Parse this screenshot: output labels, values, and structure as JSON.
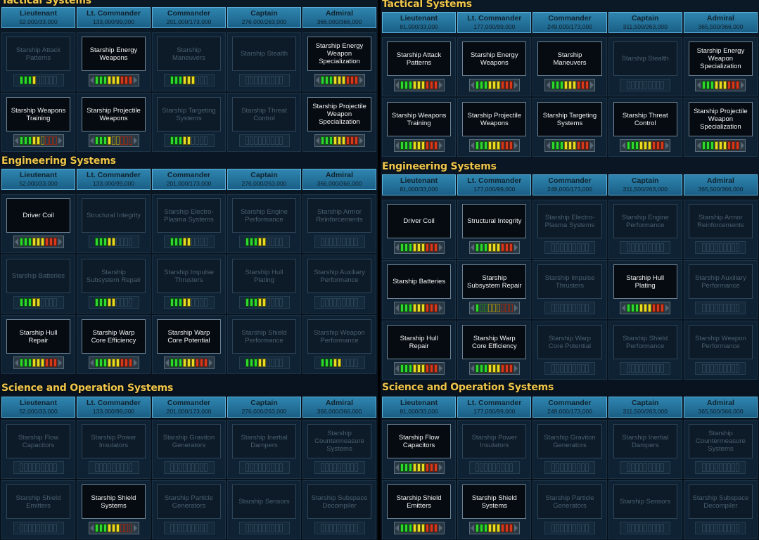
{
  "panels": [
    {
      "sections": [
        {
          "title": "Tactical Systems",
          "ranks": [
            {
              "name": "Lieutenant",
              "xp": "52,000/33,000"
            },
            {
              "name": "Lt. Commander",
              "xp": "133,000/99,000"
            },
            {
              "name": "Commander",
              "xp": "201,000/173,000"
            },
            {
              "name": "Captain",
              "xp": "276,000/263,000"
            },
            {
              "name": "Admiral",
              "xp": "366,000/366,000"
            }
          ],
          "rows": [
            [
              {
                "name": "Starship Attack Patterns",
                "active": false,
                "level": 4
              },
              {
                "name": "Starship Energy Weapons",
                "active": true,
                "level": 9
              },
              {
                "name": "Starship Maneuvers",
                "active": false,
                "level": 6
              },
              {
                "name": "Starship Stealth",
                "active": false,
                "level": 0
              },
              {
                "name": "Starship Energy Weapon Specialization",
                "active": true,
                "level": 9
              }
            ],
            [
              {
                "name": "Starship Weapons Training",
                "active": true,
                "level": 5
              },
              {
                "name": "Starship Projectile Weapons",
                "active": true,
                "level": 4
              },
              {
                "name": "Starship Targeting Systems",
                "active": false,
                "level": 5
              },
              {
                "name": "Starship Threat Control",
                "active": false,
                "level": 0
              },
              {
                "name": "Starship Projectile Weapon Specialization",
                "active": true,
                "level": 9
              }
            ]
          ]
        },
        {
          "title": "Engineering Systems",
          "ranks": [
            {
              "name": "Lieutenant",
              "xp": "52,000/33,000"
            },
            {
              "name": "Lt. Commander",
              "xp": "133,000/99,000"
            },
            {
              "name": "Commander",
              "xp": "201,000/173,000"
            },
            {
              "name": "Captain",
              "xp": "276,000/263,000"
            },
            {
              "name": "Admiral",
              "xp": "366,000/366,000"
            }
          ],
          "rows": [
            [
              {
                "name": "Driver Coil",
                "active": true,
                "level": 9
              },
              {
                "name": "Structural Integrity",
                "active": false,
                "level": 5
              },
              {
                "name": "Starship Electro-Plasma Systems",
                "active": false,
                "level": 5
              },
              {
                "name": "Starship Engine Performance",
                "active": false,
                "level": 5
              },
              {
                "name": "Starship Armor Reinforcements",
                "active": false,
                "level": 0
              }
            ],
            [
              {
                "name": "Starship Batteries",
                "active": false,
                "level": 5
              },
              {
                "name": "Starship Subsystem Repair",
                "active": false,
                "level": 5
              },
              {
                "name": "Starship Impulse Thrusters",
                "active": false,
                "level": 5
              },
              {
                "name": "Starship Hull Plating",
                "active": false,
                "level": 5
              },
              {
                "name": "Starship Auxiliary Performance",
                "active": false,
                "level": 0
              }
            ],
            [
              {
                "name": "Starship Hull Repair",
                "active": true,
                "level": 9
              },
              {
                "name": "Starship Warp Core Efficiency",
                "active": true,
                "level": 9
              },
              {
                "name": "Starship Warp Core Potential",
                "active": true,
                "level": 9
              },
              {
                "name": "Starship Shield Performance",
                "active": false,
                "level": 5
              },
              {
                "name": "Starship Weapon Performance",
                "active": false,
                "level": 5
              }
            ]
          ]
        },
        {
          "title": "Science and Operation Systems",
          "ranks": [
            {
              "name": "Lieutenant",
              "xp": "52,000/33,000"
            },
            {
              "name": "Lt. Commander",
              "xp": "133,000/99,000"
            },
            {
              "name": "Commander",
              "xp": "201,000/173,000"
            },
            {
              "name": "Captain",
              "xp": "276,000/263,000"
            },
            {
              "name": "Admiral",
              "xp": "366,000/366,000"
            }
          ],
          "rows": [
            [
              {
                "name": "Starship Flow Capacitors",
                "active": false,
                "level": 0
              },
              {
                "name": "Starship Power Insulators",
                "active": false,
                "level": 0
              },
              {
                "name": "Starship Graviton Generators",
                "active": false,
                "level": 0
              },
              {
                "name": "Starship Inertial Dampers",
                "active": false,
                "level": 0
              },
              {
                "name": "Starship Countermeasure Systems",
                "active": false,
                "level": 0
              }
            ],
            [
              {
                "name": "Starship Shield Emitters",
                "active": false,
                "level": 0
              },
              {
                "name": "Starship Shield Systems",
                "active": true,
                "level": 6
              },
              {
                "name": "Starship Particle Generators",
                "active": false,
                "level": 0
              },
              {
                "name": "Starship Sensors",
                "active": false,
                "level": 0
              },
              {
                "name": "Starship Subspace Decompiler",
                "active": false,
                "level": 0
              }
            ]
          ]
        }
      ]
    },
    {
      "sections": [
        {
          "title": "Tactical Systems",
          "ranks": [
            {
              "name": "Lieutenant",
              "xp": "81,000/33,000"
            },
            {
              "name": "Lt. Commander",
              "xp": "177,000/99,000"
            },
            {
              "name": "Commander",
              "xp": "249,000/173,000"
            },
            {
              "name": "Captain",
              "xp": "311,500/263,000"
            },
            {
              "name": "Admiral",
              "xp": "365,500/366,000"
            }
          ],
          "rows": [
            [
              {
                "name": "Starship Attack Patterns",
                "active": true,
                "level": 9
              },
              {
                "name": "Starship Energy Weapons",
                "active": true,
                "level": 9
              },
              {
                "name": "Starship Maneuvers",
                "active": true,
                "level": 9
              },
              {
                "name": "Starship Stealth",
                "active": false,
                "level": 0
              },
              {
                "name": "Starship Energy Weapon Specialization",
                "active": true,
                "level": 9
              }
            ],
            [
              {
                "name": "Starship Weapons Training",
                "active": true,
                "level": 9
              },
              {
                "name": "Starship Projectile Weapons",
                "active": true,
                "level": 9
              },
              {
                "name": "Starship Targeting Systems",
                "active": true,
                "level": 9
              },
              {
                "name": "Starship Threat Control",
                "active": true,
                "level": 9
              },
              {
                "name": "Starship Projectile Weapon Specialization",
                "active": true,
                "level": 9
              }
            ]
          ]
        },
        {
          "title": "Engineering Systems",
          "ranks": [
            {
              "name": "Lieutenant",
              "xp": "81,000/33,000"
            },
            {
              "name": "Lt. Commander",
              "xp": "177,000/99,000"
            },
            {
              "name": "Commander",
              "xp": "249,000/173,000"
            },
            {
              "name": "Captain",
              "xp": "311,500/263,000"
            },
            {
              "name": "Admiral",
              "xp": "365,500/366,000"
            }
          ],
          "rows": [
            [
              {
                "name": "Driver Coil",
                "active": true,
                "level": 9
              },
              {
                "name": "Structural Integrity",
                "active": true,
                "level": 9
              },
              {
                "name": "Starship Electro-Plasma Systems",
                "active": false,
                "level": 0
              },
              {
                "name": "Starship Engine Performance",
                "active": false,
                "level": 0
              },
              {
                "name": "Starship Armor Reinforcements",
                "active": false,
                "level": 0
              }
            ],
            [
              {
                "name": "Starship Batteries",
                "active": true,
                "level": 9
              },
              {
                "name": "Starship Subsystem Repair",
                "active": true,
                "level": 1
              },
              {
                "name": "Starship Impulse Thrusters",
                "active": false,
                "level": 0
              },
              {
                "name": "Starship Hull Plating",
                "active": true,
                "level": 9
              },
              {
                "name": "Starship Auxiliary Performance",
                "active": false,
                "level": 0
              }
            ],
            [
              {
                "name": "Starship Hull Repair",
                "active": true,
                "level": 9
              },
              {
                "name": "Starship Warp Core Efficiency",
                "active": true,
                "level": 9
              },
              {
                "name": "Starship Warp Core Potential",
                "active": false,
                "level": 0
              },
              {
                "name": "Starship Shield Performance",
                "active": false,
                "level": 0
              },
              {
                "name": "Starship Weapon Performance",
                "active": false,
                "level": 0
              }
            ]
          ]
        },
        {
          "title": "Science and Operation Systems",
          "ranks": [
            {
              "name": "Lieutenant",
              "xp": "81,000/33,000"
            },
            {
              "name": "Lt. Commander",
              "xp": "177,000/99,000"
            },
            {
              "name": "Commander",
              "xp": "249,000/173,000"
            },
            {
              "name": "Captain",
              "xp": "311,500/263,000"
            },
            {
              "name": "Admiral",
              "xp": "365,500/366,000"
            }
          ],
          "rows": [
            [
              {
                "name": "Starship Flow Capacitors",
                "active": true,
                "level": 9
              },
              {
                "name": "Starship Power Insulators",
                "active": false,
                "level": 0
              },
              {
                "name": "Starship Graviton Generators",
                "active": false,
                "level": 0
              },
              {
                "name": "Starship Inertial Dampers",
                "active": false,
                "level": 0
              },
              {
                "name": "Starship Countermeasure Systems",
                "active": false,
                "level": 0
              }
            ],
            [
              {
                "name": "Starship Shield Emitters",
                "active": true,
                "level": 9
              },
              {
                "name": "Starship Shield Systems",
                "active": true,
                "level": 9
              },
              {
                "name": "Starship Particle Generators",
                "active": false,
                "level": 0
              },
              {
                "name": "Starship Sensors",
                "active": false,
                "level": 0
              },
              {
                "name": "Starship Subspace Decompiler",
                "active": false,
                "level": 0
              }
            ]
          ]
        }
      ]
    }
  ],
  "meter_segments": 9
}
